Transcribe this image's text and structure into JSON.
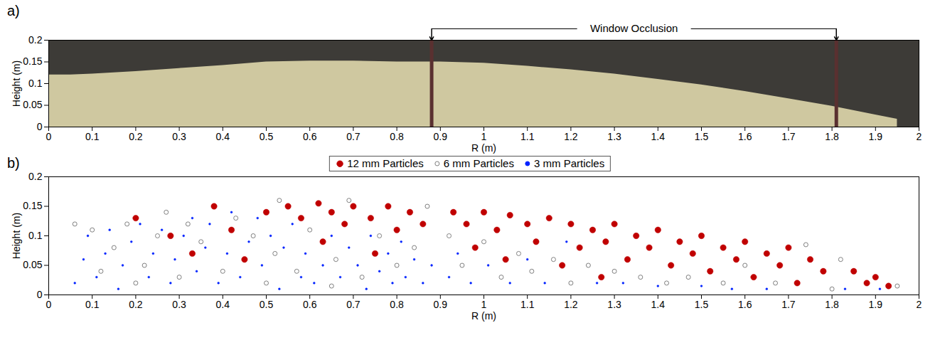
{
  "chart_data": [
    {
      "type": "area",
      "panel_label": "a)",
      "x_label": "R (m)",
      "y_label": "Height (m)",
      "x": [
        0,
        0.05,
        0.1,
        0.2,
        0.3,
        0.4,
        0.5,
        0.6,
        0.7,
        0.8,
        0.9,
        1.0,
        1.1,
        1.2,
        1.3,
        1.4,
        1.5,
        1.6,
        1.7,
        1.8,
        1.9,
        1.95
      ],
      "values": [
        0.12,
        0.12,
        0.122,
        0.128,
        0.135,
        0.142,
        0.15,
        0.152,
        0.152,
        0.15,
        0.15,
        0.147,
        0.14,
        0.132,
        0.122,
        0.11,
        0.097,
        0.082,
        0.065,
        0.048,
        0.028,
        0.018
      ],
      "color": "#cfc8a0",
      "annotation": "Window Occlusion",
      "occlusions": [
        0.88,
        1.81
      ],
      "xlim": [
        0,
        2
      ],
      "ylim": [
        0,
        0.2
      ],
      "xticks": [
        0,
        0.1,
        0.2,
        0.3,
        0.4,
        0.5,
        0.6,
        0.7,
        0.8,
        0.9,
        1,
        1.1,
        1.2,
        1.3,
        1.4,
        1.5,
        1.6,
        1.7,
        1.8,
        1.9,
        2
      ],
      "yticks": [
        0,
        0.05,
        0.1,
        0.15,
        0.2
      ],
      "grid": false
    },
    {
      "type": "scatter",
      "panel_label": "b)",
      "x_label": "R (m)",
      "y_label": "Height (m)",
      "legend": "top",
      "series": [
        {
          "name": "12 mm Particles",
          "color": "#c00000",
          "marker": "circle",
          "x": [
            0.2,
            0.28,
            0.33,
            0.38,
            0.42,
            0.45,
            0.5,
            0.55,
            0.58,
            0.62,
            0.65,
            0.68,
            0.7,
            0.74,
            0.78,
            0.8,
            0.83,
            0.86,
            0.63,
            0.75,
            0.93,
            0.96,
            1.0,
            1.03,
            1.06,
            1.1,
            1.12,
            1.15,
            1.2,
            1.22,
            1.25,
            1.28,
            1.3,
            1.33,
            1.35,
            1.38,
            1.4,
            1.43,
            1.45,
            1.48,
            1.5,
            1.52,
            1.55,
            1.58,
            1.6,
            1.62,
            1.65,
            1.68,
            1.7,
            1.72,
            1.75,
            1.78,
            1.85,
            1.88,
            1.9,
            1.93,
            0.98,
            1.05,
            1.18,
            1.27
          ],
          "values": [
            0.13,
            0.1,
            0.07,
            0.15,
            0.11,
            0.06,
            0.14,
            0.15,
            0.13,
            0.155,
            0.14,
            0.12,
            0.15,
            0.13,
            0.15,
            0.11,
            0.14,
            0.12,
            0.09,
            0.07,
            0.14,
            0.12,
            0.14,
            0.11,
            0.135,
            0.12,
            0.09,
            0.13,
            0.12,
            0.08,
            0.11,
            0.09,
            0.12,
            0.06,
            0.1,
            0.08,
            0.11,
            0.05,
            0.09,
            0.07,
            0.1,
            0.04,
            0.08,
            0.06,
            0.09,
            0.03,
            0.07,
            0.05,
            0.08,
            0.02,
            0.06,
            0.04,
            0.04,
            0.02,
            0.03,
            0.015,
            0.08,
            0.06,
            0.05,
            0.03
          ]
        },
        {
          "name": "6 mm Particles",
          "color": "#7f7f7f",
          "marker": "open circle",
          "x": [
            0.06,
            0.1,
            0.15,
            0.18,
            0.22,
            0.25,
            0.27,
            0.3,
            0.32,
            0.35,
            0.4,
            0.43,
            0.47,
            0.52,
            0.53,
            0.57,
            0.6,
            0.66,
            0.69,
            0.72,
            0.76,
            0.8,
            0.84,
            0.87,
            0.92,
            0.95,
            1.0,
            1.04,
            1.08,
            1.11,
            1.16,
            1.2,
            1.24,
            1.3,
            1.36,
            1.42,
            1.47,
            1.55,
            1.6,
            1.67,
            1.74,
            1.8,
            1.82,
            1.95,
            0.12,
            0.2,
            0.5,
            0.65
          ],
          "values": [
            0.12,
            0.11,
            0.08,
            0.12,
            0.05,
            0.1,
            0.14,
            0.03,
            0.12,
            0.09,
            0.04,
            0.13,
            0.1,
            0.07,
            0.16,
            0.04,
            0.11,
            0.06,
            0.16,
            0.03,
            0.1,
            0.05,
            0.08,
            0.15,
            0.1,
            0.05,
            0.09,
            0.03,
            0.07,
            0.04,
            0.06,
            0.02,
            0.05,
            0.04,
            0.03,
            0.02,
            0.03,
            0.02,
            0.05,
            0.02,
            0.085,
            0.01,
            0.06,
            0.015,
            0.04,
            0.02,
            0.02,
            0.015
          ]
        },
        {
          "name": "3 mm Particles",
          "color": "#0022ff",
          "marker": "circle",
          "x": [
            0.06,
            0.08,
            0.09,
            0.11,
            0.13,
            0.14,
            0.16,
            0.17,
            0.19,
            0.21,
            0.23,
            0.24,
            0.26,
            0.28,
            0.29,
            0.31,
            0.33,
            0.34,
            0.36,
            0.37,
            0.39,
            0.41,
            0.42,
            0.44,
            0.46,
            0.48,
            0.49,
            0.51,
            0.53,
            0.54,
            0.56,
            0.58,
            0.59,
            0.61,
            0.63,
            0.65,
            0.67,
            0.69,
            0.71,
            0.73,
            0.74,
            0.76,
            0.78,
            0.79,
            0.81,
            0.82,
            0.84,
            0.86,
            0.88,
            0.92,
            0.94,
            0.97,
            1.01,
            1.06,
            1.1,
            1.14,
            1.19,
            1.26,
            1.32,
            1.4,
            1.5,
            1.57,
            1.65,
            1.83,
            1.91
          ],
          "values": [
            0.02,
            0.06,
            0.1,
            0.03,
            0.07,
            0.11,
            0.01,
            0.05,
            0.09,
            0.12,
            0.03,
            0.07,
            0.11,
            0.02,
            0.06,
            0.1,
            0.13,
            0.04,
            0.08,
            0.12,
            0.02,
            0.07,
            0.14,
            0.03,
            0.09,
            0.13,
            0.05,
            0.1,
            0.01,
            0.08,
            0.12,
            0.03,
            0.07,
            0.02,
            0.05,
            0.1,
            0.03,
            0.08,
            0.05,
            0.01,
            0.1,
            0.04,
            0.07,
            0.02,
            0.09,
            0.03,
            0.06,
            0.02,
            0.05,
            0.03,
            0.07,
            0.02,
            0.05,
            0.02,
            0.06,
            0.02,
            0.09,
            0.02,
            0.02,
            0.015,
            0.015,
            0.01,
            0.01,
            0.01,
            0.01
          ]
        }
      ],
      "xlim": [
        0,
        2
      ],
      "ylim": [
        0,
        0.2
      ],
      "xticks": [
        0,
        0.1,
        0.2,
        0.3,
        0.4,
        0.5,
        0.6,
        0.7,
        0.8,
        0.9,
        1,
        1.1,
        1.2,
        1.3,
        1.4,
        1.5,
        1.6,
        1.7,
        1.8,
        1.9,
        2
      ],
      "yticks": [
        0,
        0.05,
        0.1,
        0.15,
        0.2
      ],
      "grid": false
    }
  ]
}
